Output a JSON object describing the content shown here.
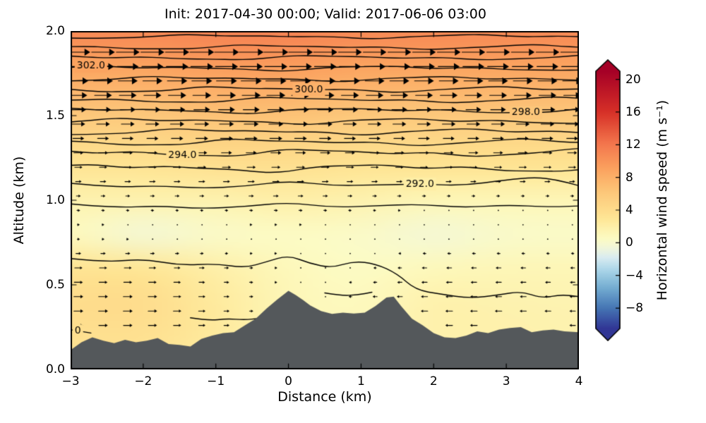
{
  "chart_data": {
    "type": "heatmap",
    "subtype": "vertical-cross-section with contour lines, wind quiver arrows and terrain silhouette",
    "title": "Init: 2017-04-30 00:00; Valid: 2017-06-06 03:00",
    "xlabel": "Distance (km)",
    "ylabel": "Altitude (km)",
    "xlim": [
      -3,
      4
    ],
    "ylim": [
      0,
      2
    ],
    "grid": false,
    "legend": "none",
    "x_ticks": [
      -3,
      -2,
      -1,
      0,
      1,
      2,
      3,
      4
    ],
    "x_tick_labels": [
      "−3",
      "−2",
      "−1",
      "0",
      "1",
      "2",
      "3",
      "4"
    ],
    "y_ticks": [
      0,
      0.5,
      1,
      1.5,
      2
    ],
    "y_tick_labels": [
      "0.0",
      "0.5",
      "1.0",
      "1.5",
      "2.0"
    ],
    "colorbar": {
      "label": "Horizontal wind speed (m s⁻¹)",
      "ticks": [
        20,
        16,
        12,
        8,
        4,
        0,
        -4,
        -8
      ],
      "tick_labels": [
        "20",
        "16",
        "12",
        "8",
        "4",
        "0",
        "−4",
        "−8"
      ],
      "vmin": -10.5,
      "vmax": 21,
      "over_color": "#a50026",
      "under_color": "#313695"
    },
    "colormap_stops": [
      [
        -10.5,
        "#313695"
      ],
      [
        -8,
        "#4575b4"
      ],
      [
        -5.5,
        "#74add1"
      ],
      [
        -3.5,
        "#a6d3e7"
      ],
      [
        -1.8,
        "#d9ecf1"
      ],
      [
        -0.6,
        "#f2f7d9"
      ],
      [
        0.6,
        "#fdfbc2"
      ],
      [
        3,
        "#fee695"
      ],
      [
        6,
        "#fdc97b"
      ],
      [
        9,
        "#fba35f"
      ],
      [
        12,
        "#f4784e"
      ],
      [
        16,
        "#d73027"
      ],
      [
        21,
        "#a50026"
      ]
    ],
    "wind_field": {
      "x": [
        -3,
        -2,
        -1,
        0,
        1,
        2,
        3,
        4
      ],
      "z": [
        0,
        0.2,
        0.4,
        0.6,
        0.8,
        1.0,
        1.2,
        1.4,
        1.6,
        1.8,
        2.0
      ],
      "u_fill": [
        [
          3,
          3,
          2,
          1,
          1,
          1.5,
          1.5,
          1.5
        ],
        [
          3.6,
          3.6,
          2.6,
          1.2,
          1,
          1.8,
          1.8,
          1.6
        ],
        [
          4,
          4,
          2.6,
          1.2,
          0.8,
          1.8,
          1.6,
          1.5
        ],
        [
          3.2,
          3,
          2,
          1,
          0.5,
          1,
          1.2,
          1.2
        ],
        [
          0.8,
          -0.4,
          0.3,
          0.5,
          0.3,
          -0.4,
          0.2,
          0.3
        ],
        [
          1.6,
          1.6,
          1.6,
          2,
          1.6,
          1.2,
          1.2,
          1.2
        ],
        [
          3.2,
          3.2,
          3.6,
          3.6,
          3.2,
          3.2,
          3.2,
          3.2
        ],
        [
          5,
          5,
          5.5,
          5.5,
          5,
          5,
          5,
          5
        ],
        [
          7,
          7,
          7.5,
          7.5,
          7,
          7,
          7,
          7
        ],
        [
          9,
          9,
          9.5,
          9.5,
          9,
          9,
          9,
          9
        ],
        [
          10.8,
          10.8,
          11.2,
          11.2,
          10.8,
          10.8,
          10.8,
          10.8
        ]
      ],
      "u_arrow": [
        [
          3,
          3,
          2,
          0,
          -1.5,
          -2.5,
          -2.5,
          -2.2
        ],
        [
          3.6,
          3.6,
          2.6,
          0.3,
          -2,
          -3,
          -3,
          -2.5
        ],
        [
          4,
          4,
          2.6,
          0.5,
          -1.8,
          -3,
          -2.8,
          -2.4
        ],
        [
          3.2,
          3,
          2,
          0.8,
          -1,
          -2.2,
          -2.2,
          -1.8
        ],
        [
          0.8,
          0.3,
          0.3,
          0.5,
          0.2,
          -0.5,
          -0.4,
          -0.4
        ],
        [
          1.6,
          1.6,
          1.6,
          2,
          1.6,
          1.2,
          1.2,
          1.2
        ],
        [
          3.2,
          3.2,
          3.6,
          3.6,
          3.2,
          3.2,
          3.2,
          3.2
        ],
        [
          5,
          5,
          5.5,
          5.5,
          5,
          5,
          5,
          5
        ],
        [
          7,
          7,
          7.5,
          7.5,
          7,
          7,
          7,
          7
        ],
        [
          9,
          9,
          9.5,
          9.5,
          9,
          9,
          9,
          9
        ],
        [
          10.8,
          10.8,
          11.2,
          11.2,
          10.8,
          10.8,
          10.8,
          10.8
        ]
      ]
    },
    "quiver": {
      "x_start": -2.89,
      "x_end": 3.92,
      "x_step": 0.34,
      "z_start": 0.26,
      "z_end": 1.9,
      "z_step": 0.085,
      "scale": 3.4
    },
    "contours": [
      {
        "level": "0",
        "pts": [
          [
            -3,
            0.235
          ],
          [
            -2.72,
            0.215
          ]
        ],
        "label": "0",
        "label_x": -2.9
      },
      {
        "level": "289",
        "pts": [
          [
            -1.35,
            0.305
          ],
          [
            -1.1,
            0.288
          ],
          [
            -0.85,
            0.3
          ],
          [
            -0.6,
            0.293
          ],
          [
            -0.4,
            0.302
          ]
        ]
      },
      {
        "level": "289",
        "pts": [
          [
            0.5,
            0.452
          ],
          [
            0.72,
            0.436
          ],
          [
            0.95,
            0.44
          ],
          [
            1.15,
            0.456
          ]
        ]
      },
      {
        "level": "290",
        "pts": [
          [
            -3,
            0.655
          ],
          [
            -2.5,
            0.633
          ],
          [
            -2,
            0.654
          ],
          [
            -1.5,
            0.615
          ],
          [
            -1,
            0.625
          ],
          [
            -0.6,
            0.6
          ],
          [
            -0.3,
            0.636
          ],
          [
            0,
            0.675
          ],
          [
            0.3,
            0.625
          ],
          [
            0.6,
            0.6
          ],
          [
            0.9,
            0.64
          ],
          [
            1.2,
            0.625
          ],
          [
            1.5,
            0.565
          ],
          [
            1.75,
            0.47
          ],
          [
            2.1,
            0.445
          ],
          [
            2.5,
            0.42
          ],
          [
            2.9,
            0.44
          ],
          [
            3.2,
            0.462
          ],
          [
            3.5,
            0.42
          ],
          [
            3.75,
            0.443
          ],
          [
            4,
            0.43
          ]
        ]
      },
      {
        "level": "291",
        "pts": [
          [
            -3,
            0.978
          ],
          [
            -2.4,
            0.955
          ],
          [
            -1.8,
            0.967
          ],
          [
            -1.2,
            0.95
          ],
          [
            -0.6,
            0.962
          ],
          [
            0,
            0.988
          ],
          [
            0.6,
            0.957
          ],
          [
            1.2,
            0.967
          ],
          [
            1.8,
            0.977
          ],
          [
            2.4,
            0.956
          ],
          [
            3,
            0.972
          ],
          [
            3.6,
            0.96
          ],
          [
            4,
            0.966
          ]
        ]
      },
      {
        "level": "292",
        "label": "292.0",
        "label_x": 1.81,
        "pts": [
          [
            -3,
            1.1
          ],
          [
            -2.4,
            1.076
          ],
          [
            -1.8,
            1.086
          ],
          [
            -1.2,
            1.07
          ],
          [
            -0.6,
            1.082
          ],
          [
            0,
            1.115
          ],
          [
            0.6,
            1.086
          ],
          [
            1.2,
            1.09
          ],
          [
            1.81,
            1.096
          ],
          [
            2.4,
            1.086
          ],
          [
            3,
            1.12
          ],
          [
            3.4,
            1.136
          ],
          [
            3.7,
            1.12
          ],
          [
            4,
            1.086
          ]
        ]
      },
      {
        "level": "293",
        "base": 1.19,
        "amp": 0.016
      },
      {
        "level": "294",
        "base": 1.28,
        "amp": 0.015,
        "label": "294.0",
        "label_x": -1.46
      },
      {
        "level": "295",
        "base": 1.3425,
        "amp": 0.013
      },
      {
        "level": "296",
        "base": 1.405,
        "amp": 0.012
      },
      {
        "level": "297",
        "base": 1.4675,
        "amp": 0.012
      },
      {
        "level": "298",
        "base": 1.53,
        "amp": 0.011,
        "label": "298.0",
        "label_x": 3.27
      },
      {
        "level": "299",
        "base": 1.5925,
        "amp": 0.011
      },
      {
        "level": "300",
        "base": 1.655,
        "amp": 0.011,
        "label": "300.0",
        "label_x": 0.28
      },
      {
        "level": "301",
        "base": 1.7175,
        "amp": 0.01
      },
      {
        "level": "302",
        "base": 1.78,
        "amp": 0.01,
        "label": "302.0",
        "label_x": -2.72
      },
      {
        "level": "303",
        "base": 1.8425,
        "amp": 0.009
      },
      {
        "level": "304",
        "base": 1.905,
        "amp": 0.009
      },
      {
        "level": "305",
        "base": 1.9675,
        "amp": 0.008
      }
    ],
    "terrain": {
      "color": "#54585b",
      "profile": [
        [
          -3,
          0.115
        ],
        [
          -2.85,
          0.16
        ],
        [
          -2.7,
          0.19
        ],
        [
          -2.55,
          0.17
        ],
        [
          -2.4,
          0.155
        ],
        [
          -2.25,
          0.175
        ],
        [
          -2.1,
          0.16
        ],
        [
          -1.95,
          0.17
        ],
        [
          -1.8,
          0.185
        ],
        [
          -1.65,
          0.15
        ],
        [
          -1.5,
          0.145
        ],
        [
          -1.35,
          0.135
        ],
        [
          -1.2,
          0.18
        ],
        [
          -1.05,
          0.2
        ],
        [
          -0.9,
          0.215
        ],
        [
          -0.75,
          0.22
        ],
        [
          -0.6,
          0.26
        ],
        [
          -0.45,
          0.3
        ],
        [
          -0.3,
          0.36
        ],
        [
          -0.15,
          0.415
        ],
        [
          0,
          0.465
        ],
        [
          0.1,
          0.44
        ],
        [
          0.2,
          0.41
        ],
        [
          0.3,
          0.378
        ],
        [
          0.45,
          0.345
        ],
        [
          0.6,
          0.328
        ],
        [
          0.75,
          0.335
        ],
        [
          0.9,
          0.33
        ],
        [
          1.05,
          0.335
        ],
        [
          1.2,
          0.375
        ],
        [
          1.35,
          0.425
        ],
        [
          1.45,
          0.43
        ],
        [
          1.55,
          0.375
        ],
        [
          1.7,
          0.3
        ],
        [
          1.85,
          0.26
        ],
        [
          2,
          0.215
        ],
        [
          2.15,
          0.19
        ],
        [
          2.3,
          0.185
        ],
        [
          2.45,
          0.2
        ],
        [
          2.6,
          0.225
        ],
        [
          2.75,
          0.215
        ],
        [
          2.9,
          0.235
        ],
        [
          3.05,
          0.245
        ],
        [
          3.2,
          0.25
        ],
        [
          3.35,
          0.22
        ],
        [
          3.5,
          0.23
        ],
        [
          3.65,
          0.235
        ],
        [
          3.8,
          0.225
        ],
        [
          4,
          0.22
        ]
      ]
    }
  }
}
